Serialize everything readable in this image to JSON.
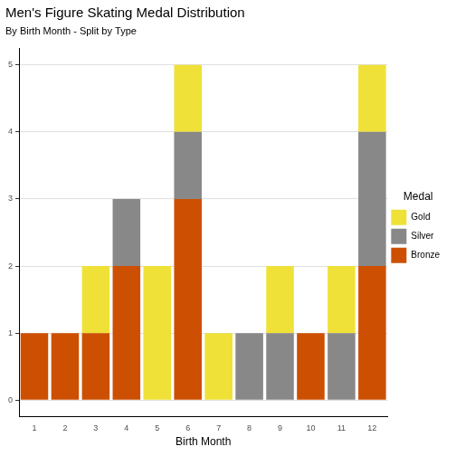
{
  "chart_data": {
    "type": "bar",
    "title": "Men's Figure Skating Medal Distribution",
    "subtitle": "By Birth Month - Split by Type",
    "x_label": "Birth Month",
    "legend_title": "Medal",
    "categories": [
      "1",
      "2",
      "3",
      "4",
      "5",
      "6",
      "7",
      "8",
      "9",
      "10",
      "11",
      "12"
    ],
    "series": [
      {
        "name": "Bronze",
        "color": "#cd4f02",
        "values": [
          1,
          1,
          1,
          2,
          0,
          3,
          0,
          0,
          0,
          1,
          0,
          2
        ]
      },
      {
        "name": "Silver",
        "color": "#888888",
        "values": [
          0,
          0,
          0,
          1,
          0,
          1,
          0,
          1,
          1,
          0,
          1,
          2
        ]
      },
      {
        "name": "Gold",
        "color": "#efe137",
        "values": [
          0,
          0,
          1,
          0,
          2,
          1,
          1,
          0,
          1,
          0,
          1,
          1
        ]
      }
    ],
    "stacked": true,
    "legend": "right",
    "grid": true,
    "ylim": [
      -0.25,
      5.25
    ],
    "yticks": [
      0,
      1,
      2,
      3,
      4,
      5
    ]
  }
}
